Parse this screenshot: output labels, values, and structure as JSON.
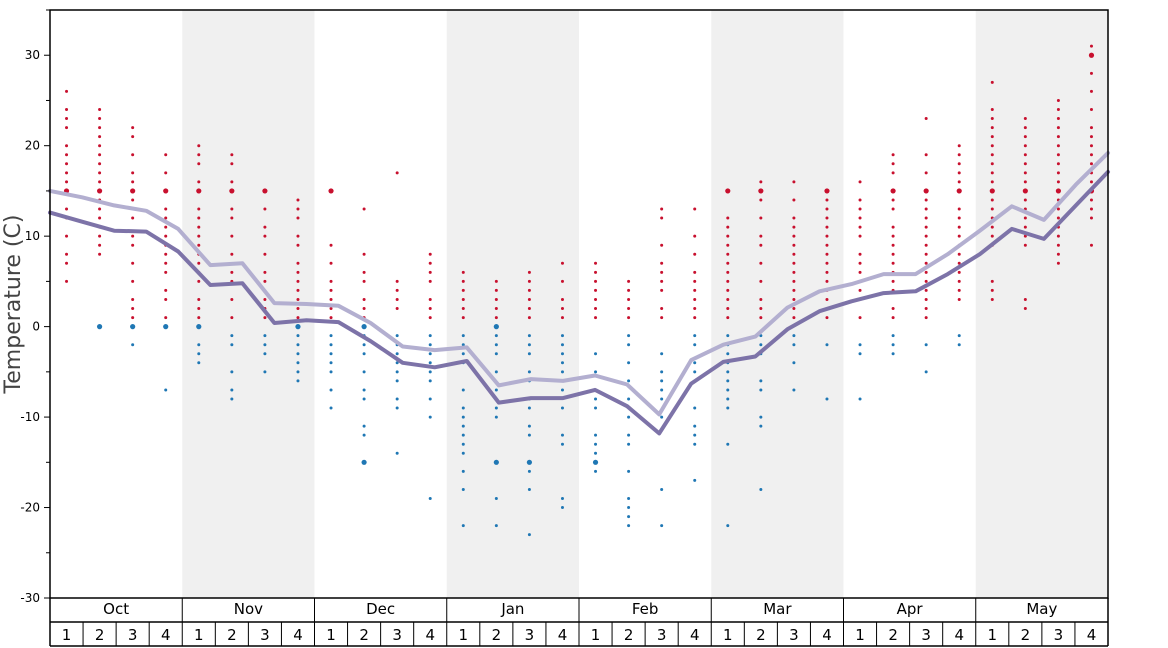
{
  "chart_data": {
    "type": "scatter",
    "title": "",
    "ylabel": "Temperature (C)",
    "ylim": [
      -30,
      35
    ],
    "yticks": [
      30,
      20,
      10,
      0,
      -10,
      -20,
      -30
    ],
    "months": [
      "Oct",
      "Nov",
      "Dec",
      "Jan",
      "Feb",
      "Mar",
      "Apr",
      "May"
    ],
    "weeks": [
      "1",
      "2",
      "3",
      "4"
    ],
    "colors": {
      "warm_point": "#c8102e",
      "cold_point": "#1f77b4",
      "max_line": "#b3afd0",
      "min_line": "#7d73a8",
      "band": "#f0f0f0"
    },
    "series": [
      {
        "kind": "line",
        "values": [
          15.0,
          14.3,
          13.4,
          12.8,
          10.8,
          6.8,
          7.0,
          2.6,
          2.5,
          2.3,
          0.4,
          -2.2,
          -2.6,
          -2.3,
          -6.5,
          -5.8,
          -6.0,
          -5.4,
          -6.4,
          -9.7,
          -3.7,
          -2.0,
          -1.1,
          2.1,
          3.9,
          4.7,
          5.8,
          5.8,
          8.0,
          10.6,
          13.3,
          11.8,
          15.7,
          19.2
        ]
      },
      {
        "kind": "line",
        "values": [
          12.6,
          11.6,
          10.6,
          10.5,
          8.3,
          4.6,
          4.8,
          0.4,
          0.7,
          0.5,
          -1.6,
          -4.0,
          -4.5,
          -3.8,
          -8.4,
          -7.9,
          -7.9,
          -7.0,
          -8.8,
          -11.8,
          -6.3,
          -3.9,
          -3.3,
          -0.3,
          1.7,
          2.8,
          3.7,
          3.9,
          5.8,
          8.0,
          10.8,
          9.7,
          13.4,
          17.1
        ]
      }
    ],
    "scatter": [
      {
        "week": 1,
        "warm": [
          26,
          24,
          23,
          22,
          20,
          19,
          18,
          17,
          16,
          15,
          13,
          12,
          10,
          8,
          7,
          5
        ],
        "cold": []
      },
      {
        "week": 2,
        "warm": [
          24,
          23,
          22,
          21,
          20,
          19,
          18,
          17,
          16,
          15,
          14,
          13,
          12,
          11,
          10,
          9,
          8
        ],
        "cold": [
          0
        ]
      },
      {
        "week": 3,
        "warm": [
          22,
          21,
          19,
          17,
          16,
          15,
          14,
          12,
          10,
          9,
          7,
          5,
          3,
          2,
          1
        ],
        "cold": [
          0,
          -2
        ]
      },
      {
        "week": 4,
        "warm": [
          19,
          17,
          15,
          13,
          12,
          11,
          10,
          9,
          8,
          7,
          6,
          4,
          3,
          1
        ],
        "cold": [
          0,
          -7
        ]
      },
      {
        "week": 5,
        "warm": [
          20,
          19,
          18,
          16,
          15,
          13,
          12,
          11,
          10,
          9,
          8,
          7,
          6,
          5,
          3,
          2,
          1
        ],
        "cold": [
          0,
          -2,
          -3,
          -4
        ]
      },
      {
        "week": 6,
        "warm": [
          19,
          18,
          16,
          15,
          13,
          12,
          10,
          8,
          6,
          5,
          3,
          1
        ],
        "cold": [
          -1,
          -2,
          -5,
          -7,
          -8
        ]
      },
      {
        "week": 7,
        "warm": [
          15,
          13,
          11,
          10,
          8,
          6,
          5,
          3,
          2,
          1
        ],
        "cold": [
          -1,
          -2,
          -3,
          -5
        ]
      },
      {
        "week": 8,
        "warm": [
          14,
          13,
          12,
          10,
          9,
          7,
          6,
          5,
          4,
          3,
          2,
          1
        ],
        "cold": [
          0,
          -1,
          -2,
          -3,
          -4,
          -5,
          -6
        ]
      },
      {
        "week": 9,
        "warm": [
          15,
          9,
          7,
          5,
          4,
          3,
          2,
          1
        ],
        "cold": [
          -1,
          -2,
          -3,
          -4,
          -5,
          -7,
          -9
        ]
      },
      {
        "week": 10,
        "warm": [
          13,
          8,
          6,
          5,
          3,
          2,
          1
        ],
        "cold": [
          0,
          -1,
          -2,
          -3,
          -5,
          -7,
          -8,
          -11,
          -12,
          -15
        ]
      },
      {
        "week": 11,
        "warm": [
          17,
          5,
          4,
          3,
          2
        ],
        "cold": [
          -1,
          -2,
          -3,
          -4,
          -5,
          -6,
          -8,
          -9,
          -14
        ]
      },
      {
        "week": 12,
        "warm": [
          8,
          7,
          6,
          5,
          3,
          2,
          1
        ],
        "cold": [
          -1,
          -2,
          -3,
          -4,
          -5,
          -6,
          -8,
          -10,
          -19
        ]
      },
      {
        "week": 13,
        "warm": [
          6,
          5,
          4,
          3,
          2,
          1
        ],
        "cold": [
          -1,
          -2,
          -3,
          -4,
          -7,
          -9,
          -10,
          -11,
          -12,
          -13,
          -14,
          -16,
          -18,
          -22
        ]
      },
      {
        "week": 14,
        "warm": [
          5,
          4,
          3,
          2,
          1
        ],
        "cold": [
          0,
          -1,
          -2,
          -3,
          -5,
          -7,
          -9,
          -10,
          -15,
          -19,
          -22
        ]
      },
      {
        "week": 15,
        "warm": [
          6,
          5,
          4,
          3,
          2,
          1
        ],
        "cold": [
          -1,
          -2,
          -3,
          -5,
          -6,
          -8,
          -9,
          -11,
          -12,
          -15,
          -16,
          -18,
          -23
        ]
      },
      {
        "week": 16,
        "warm": [
          7,
          5,
          3,
          2,
          1
        ],
        "cold": [
          -1,
          -2,
          -3,
          -4,
          -5,
          -7,
          -9,
          -12,
          -13,
          -19,
          -20
        ]
      },
      {
        "week": 17,
        "warm": [
          7,
          6,
          5,
          4,
          3,
          2,
          1
        ],
        "cold": [
          -3,
          -5,
          -7,
          -8,
          -9,
          -12,
          -13,
          -14,
          -15,
          -16
        ]
      },
      {
        "week": 18,
        "warm": [
          5,
          4,
          3,
          2,
          1
        ],
        "cold": [
          -1,
          -2,
          -4,
          -6,
          -8,
          -10,
          -12,
          -13,
          -16,
          -19,
          -20,
          -21,
          -22
        ]
      },
      {
        "week": 19,
        "warm": [
          13,
          12,
          9,
          7,
          6,
          5,
          4,
          2,
          1
        ],
        "cold": [
          -3,
          -5,
          -6,
          -7,
          -8,
          -10,
          -18,
          -22
        ]
      },
      {
        "week": 20,
        "warm": [
          13,
          10,
          8,
          6,
          5,
          4,
          3,
          2,
          1
        ],
        "cold": [
          -1,
          -2,
          -4,
          -5,
          -9,
          -11,
          -12,
          -13,
          -17
        ]
      },
      {
        "week": 21,
        "warm": [
          15,
          12,
          11,
          10,
          9,
          8,
          7,
          6,
          5,
          4,
          3,
          2,
          1
        ],
        "cold": [
          -1,
          -2,
          -3,
          -4,
          -5,
          -6,
          -7,
          -8,
          -9,
          -13,
          -22
        ]
      },
      {
        "week": 22,
        "warm": [
          16,
          15,
          14,
          12,
          10,
          9,
          7,
          5,
          3,
          2,
          1
        ],
        "cold": [
          -1,
          -2,
          -3,
          -6,
          -7,
          -10,
          -11,
          -18
        ]
      },
      {
        "week": 23,
        "warm": [
          16,
          14,
          12,
          11,
          10,
          9,
          8,
          7,
          6,
          5,
          4,
          3,
          2,
          1
        ],
        "cold": [
          -1,
          -2,
          -4,
          -7
        ]
      },
      {
        "week": 24,
        "warm": [
          15,
          14,
          13,
          12,
          11,
          10,
          9,
          8,
          7,
          6,
          5,
          4,
          3,
          2,
          1
        ],
        "cold": [
          -2,
          -8
        ]
      },
      {
        "week": 25,
        "warm": [
          16,
          14,
          13,
          12,
          11,
          10,
          8,
          7,
          6,
          4,
          3,
          1
        ],
        "cold": [
          -2,
          -3,
          -8
        ]
      },
      {
        "week": 26,
        "warm": [
          19,
          18,
          17,
          15,
          14,
          13,
          11,
          10,
          9,
          8,
          7,
          6,
          5,
          4,
          2,
          1
        ],
        "cold": [
          -1,
          -2,
          -3
        ]
      },
      {
        "week": 27,
        "warm": [
          23,
          19,
          17,
          15,
          14,
          13,
          12,
          11,
          10,
          9,
          8,
          7,
          6,
          5,
          4,
          3,
          2,
          1
        ],
        "cold": [
          -2,
          -5
        ]
      },
      {
        "week": 28,
        "warm": [
          20,
          19,
          18,
          17,
          16,
          15,
          13,
          12,
          11,
          10,
          9,
          8,
          7,
          6,
          5,
          4,
          3
        ],
        "cold": [
          -1,
          -2
        ]
      },
      {
        "week": 29,
        "warm": [
          27,
          24,
          23,
          22,
          21,
          20,
          19,
          18,
          17,
          16,
          15,
          14,
          13,
          12,
          11,
          10,
          9,
          5,
          4,
          3
        ],
        "cold": []
      },
      {
        "week": 30,
        "warm": [
          23,
          22,
          21,
          20,
          19,
          18,
          17,
          16,
          15,
          14,
          13,
          12,
          11,
          10,
          9,
          3,
          2
        ],
        "cold": []
      },
      {
        "week": 31,
        "warm": [
          25,
          24,
          23,
          22,
          21,
          20,
          19,
          18,
          17,
          16,
          15,
          14,
          13,
          12,
          11,
          10,
          9,
          8,
          7
        ],
        "cold": []
      },
      {
        "week": 32,
        "warm": [
          31,
          30,
          28,
          26,
          24,
          22,
          21,
          20,
          19,
          18,
          17,
          16,
          15,
          14,
          13,
          12,
          9
        ],
        "cold": []
      }
    ]
  }
}
